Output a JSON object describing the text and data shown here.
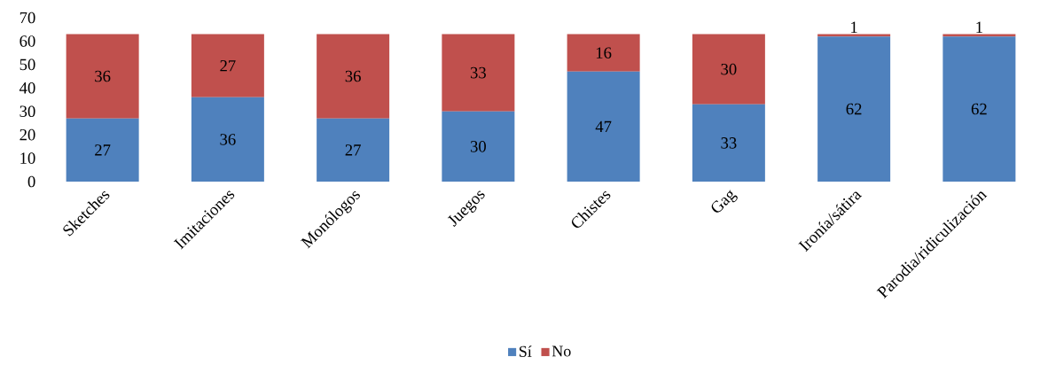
{
  "chart_data": {
    "type": "bar",
    "stacked": true,
    "categories": [
      "Sketches",
      "Imitaciones",
      "Monólogos",
      "Juegos",
      "Chistes",
      "Gag",
      "Ironía/sátira",
      "Parodia/ridiculización"
    ],
    "series": [
      {
        "name": "Sí",
        "color": "#4f81bd",
        "values": [
          27,
          36,
          27,
          30,
          47,
          33,
          62,
          62
        ]
      },
      {
        "name": "No",
        "color": "#c0504d",
        "values": [
          36,
          27,
          36,
          33,
          16,
          30,
          1,
          1
        ]
      }
    ],
    "ylim": [
      0,
      70
    ],
    "yticks": [
      0,
      10,
      20,
      30,
      40,
      50,
      60,
      70
    ],
    "data_labels": true,
    "legend": "bottom",
    "grid": false
  }
}
